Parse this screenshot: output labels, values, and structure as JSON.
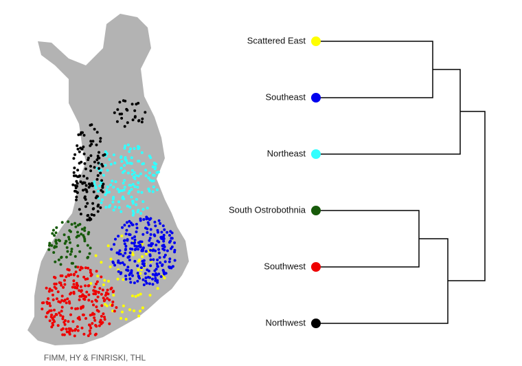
{
  "map": {
    "credit": "FIMM, HY & FINRISKI, THL"
  },
  "dendrogram": {
    "leaves": [
      {
        "label": "Scattered East",
        "color": "#ffff00"
      },
      {
        "label": "Southeast",
        "color": "#0000ee"
      },
      {
        "label": "Northeast",
        "color": "#33ffff"
      },
      {
        "label": "South Ostrobothnia",
        "color": "#175a0a"
      },
      {
        "label": "Southwest",
        "color": "#ee0000"
      },
      {
        "label": "Northwest",
        "color": "#000000"
      }
    ]
  }
}
